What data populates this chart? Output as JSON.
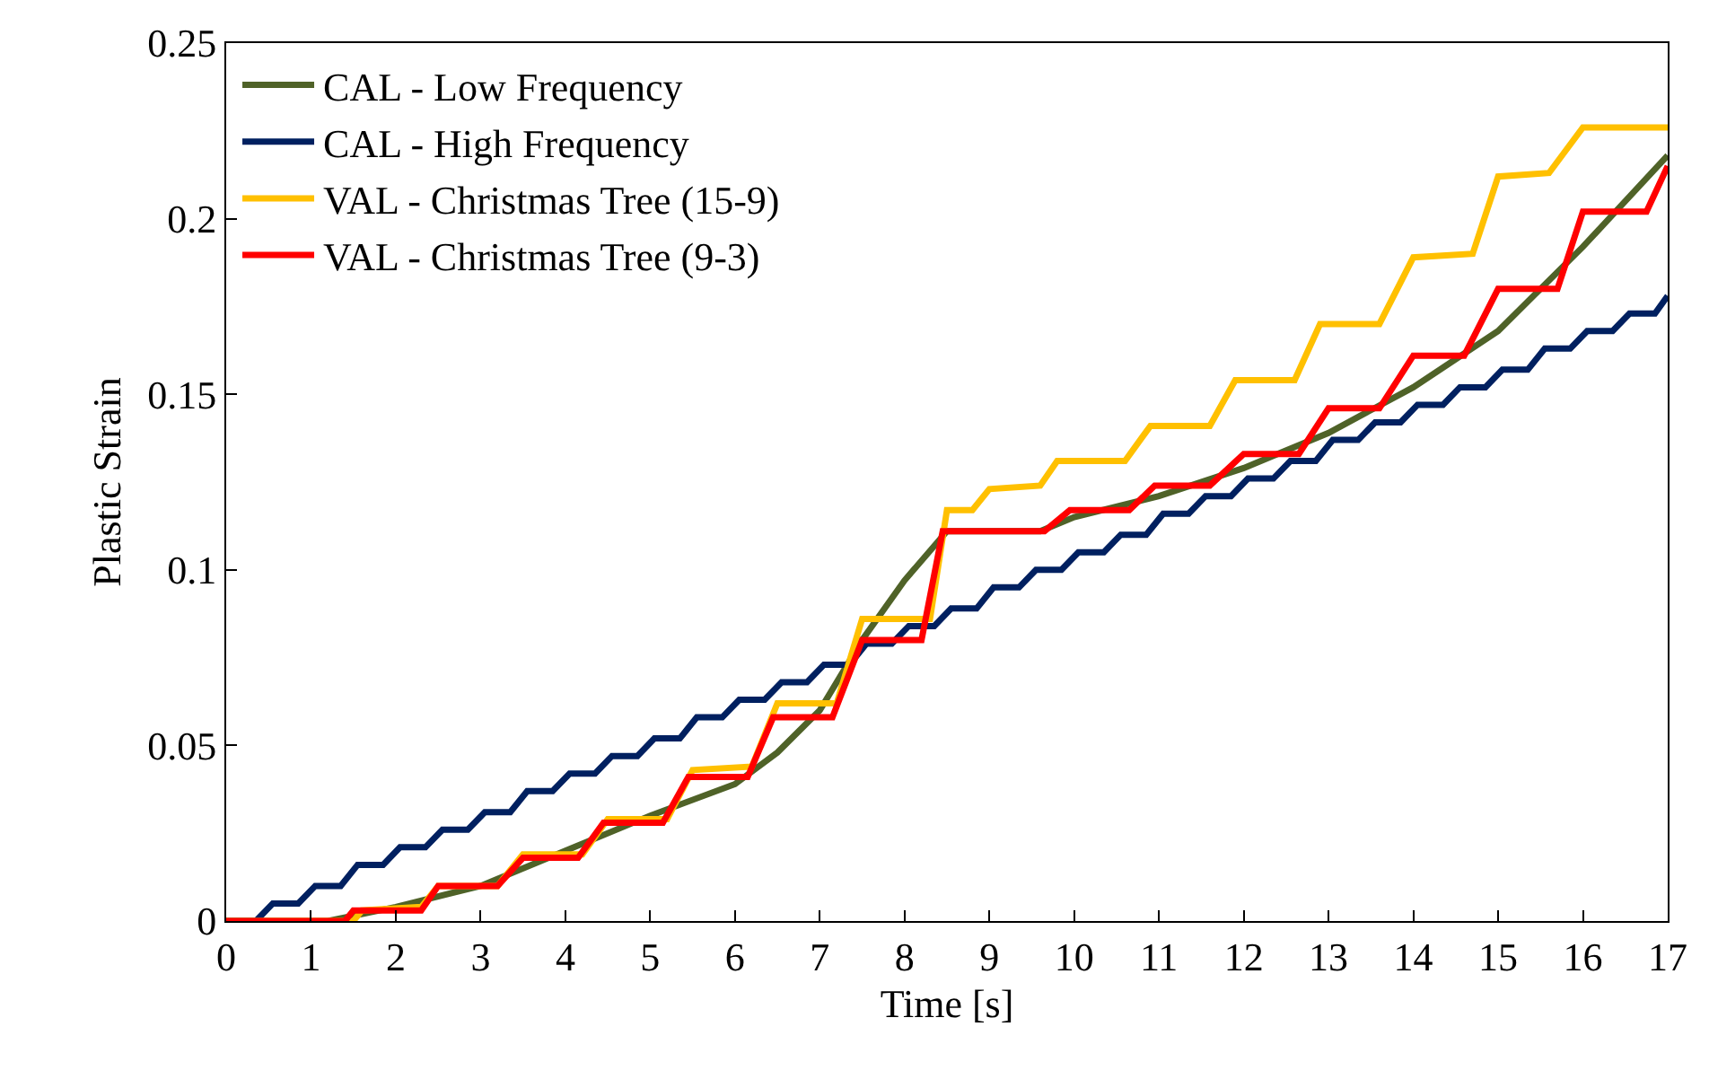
{
  "chart_data": {
    "type": "line",
    "xlabel": "Time [s]",
    "ylabel": "Plastic Strain",
    "xlim": [
      0,
      17
    ],
    "xticks": [
      0,
      1,
      2,
      3,
      4,
      5,
      6,
      7,
      8,
      9,
      10,
      11,
      12,
      13,
      14,
      15,
      16,
      17
    ],
    "ylim": [
      0,
      0.25
    ],
    "yticks": [
      0,
      0.05,
      0.1,
      0.15,
      0.2,
      0.25
    ],
    "legend": "top left",
    "marker": "none",
    "line_style": "solid",
    "series": [
      {
        "name": "CAL - Low Frequency",
        "color": "#4f6228",
        "x": [
          0,
          1.2,
          2,
          3,
          4,
          5,
          6,
          6.5,
          7,
          7.5,
          8,
          8.5,
          9,
          9.6,
          10,
          11,
          12,
          13,
          14,
          15,
          16,
          17
        ],
        "values": [
          0,
          0,
          0.004,
          0.01,
          0.02,
          0.03,
          0.039,
          0.048,
          0.06,
          0.08,
          0.097,
          0.111,
          0.111,
          0.111,
          0.115,
          0.121,
          0.129,
          0.139,
          0.152,
          0.168,
          0.192,
          0.218
        ]
      },
      {
        "name": "CAL - High Frequency",
        "color": "#002060",
        "x": [
          0,
          0.35,
          0.55,
          0.85,
          1.05,
          1.35,
          1.55,
          1.85,
          2.05,
          2.35,
          2.55,
          2.85,
          3.05,
          3.35,
          3.55,
          3.85,
          4.05,
          4.35,
          4.55,
          4.85,
          5.05,
          5.35,
          5.55,
          5.85,
          6.05,
          6.35,
          6.55,
          6.85,
          7.05,
          7.35,
          7.55,
          7.85,
          8.05,
          8.35,
          8.55,
          8.85,
          9.05,
          9.35,
          9.55,
          9.85,
          10.05,
          10.35,
          10.55,
          10.85,
          11.05,
          11.35,
          11.55,
          11.85,
          12.05,
          12.35,
          12.55,
          12.85,
          13.05,
          13.35,
          13.55,
          13.85,
          14.05,
          14.35,
          14.55,
          14.85,
          15.05,
          15.35,
          15.55,
          15.85,
          16.05,
          16.35,
          16.55,
          16.85,
          17
        ],
        "values": [
          0,
          0,
          0.005,
          0.005,
          0.01,
          0.01,
          0.016,
          0.016,
          0.021,
          0.021,
          0.026,
          0.026,
          0.031,
          0.031,
          0.037,
          0.037,
          0.042,
          0.042,
          0.047,
          0.047,
          0.052,
          0.052,
          0.058,
          0.058,
          0.063,
          0.063,
          0.068,
          0.068,
          0.073,
          0.073,
          0.079,
          0.079,
          0.084,
          0.084,
          0.089,
          0.089,
          0.095,
          0.095,
          0.1,
          0.1,
          0.105,
          0.105,
          0.11,
          0.11,
          0.116,
          0.116,
          0.121,
          0.121,
          0.126,
          0.126,
          0.131,
          0.131,
          0.137,
          0.137,
          0.142,
          0.142,
          0.147,
          0.147,
          0.152,
          0.152,
          0.157,
          0.157,
          0.163,
          0.163,
          0.168,
          0.168,
          0.173,
          0.173,
          0.178
        ]
      },
      {
        "name": "VAL - Christmas Tree (15-9)",
        "color": "#ffc000",
        "x": [
          0,
          1.5,
          1.6,
          2.3,
          2.5,
          3.2,
          3.5,
          4.2,
          4.5,
          5.2,
          5.5,
          6.2,
          6.5,
          7.2,
          7.5,
          8.3,
          8.5,
          8.8,
          9.0,
          9.6,
          9.8,
          10.6,
          10.9,
          11.6,
          11.9,
          12.6,
          12.9,
          13.6,
          14.0,
          14.7,
          15.0,
          15.6,
          16.0,
          17
        ],
        "values": [
          0,
          0,
          0.003,
          0.004,
          0.01,
          0.01,
          0.019,
          0.019,
          0.029,
          0.029,
          0.043,
          0.044,
          0.062,
          0.062,
          0.086,
          0.086,
          0.117,
          0.117,
          0.123,
          0.124,
          0.131,
          0.131,
          0.141,
          0.141,
          0.154,
          0.154,
          0.17,
          0.17,
          0.189,
          0.19,
          0.212,
          0.213,
          0.226,
          0.226
        ]
      },
      {
        "name": "VAL - Christmas Tree (9-3)",
        "color": "#ff0000",
        "x": [
          0,
          1.4,
          1.5,
          2.3,
          2.5,
          3.2,
          3.5,
          4.15,
          4.45,
          5.15,
          5.45,
          6.15,
          6.45,
          7.15,
          7.5,
          8.2,
          8.45,
          9.65,
          9.95,
          10.65,
          10.95,
          11.6,
          12.0,
          12.65,
          13.0,
          13.6,
          14.0,
          14.6,
          15.0,
          15.7,
          16.0,
          16.75,
          17
        ],
        "values": [
          0,
          0,
          0.003,
          0.003,
          0.01,
          0.01,
          0.018,
          0.018,
          0.028,
          0.028,
          0.041,
          0.041,
          0.058,
          0.058,
          0.08,
          0.08,
          0.111,
          0.111,
          0.117,
          0.117,
          0.124,
          0.124,
          0.133,
          0.133,
          0.146,
          0.146,
          0.161,
          0.161,
          0.18,
          0.18,
          0.202,
          0.202,
          0.215
        ]
      }
    ]
  }
}
